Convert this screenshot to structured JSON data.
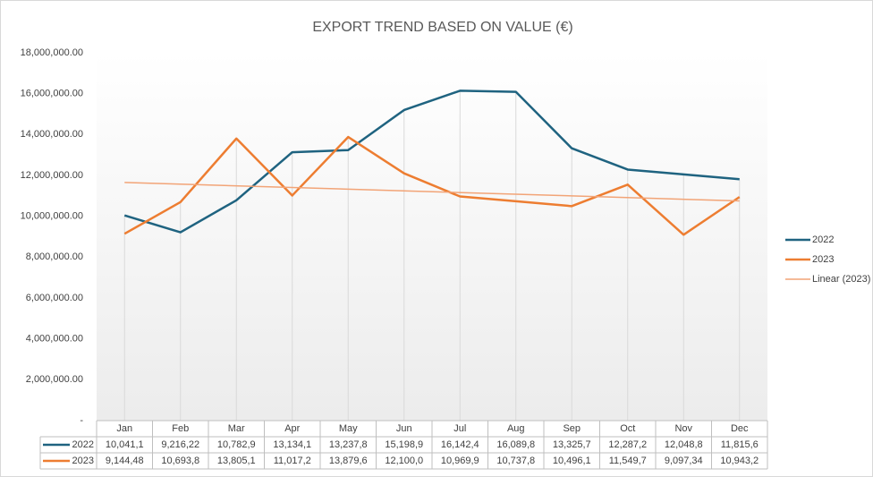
{
  "chart_data": {
    "type": "line",
    "title": "EXPORT TREND BASED ON VALUE (€)",
    "categories": [
      "Jan",
      "Feb",
      "Mar",
      "Apr",
      "May",
      "Jun",
      "Jul",
      "Aug",
      "Sep",
      "Oct",
      "Nov",
      "Dec"
    ],
    "series": [
      {
        "name": "2022",
        "color": "#1f6380",
        "values": [
          10041100,
          9216220,
          10782900,
          13134100,
          13237800,
          15198900,
          16142400,
          16089800,
          13325700,
          12287200,
          12048800,
          11815600
        ],
        "value_labels": [
          "10,041,1",
          "9,216,22",
          "10,782,9",
          "13,134,1",
          "13,237,8",
          "15,198,9",
          "16,142,4",
          "16,089,8",
          "13,325,7",
          "12,287,2",
          "12,048,8",
          "11,815,6"
        ]
      },
      {
        "name": "2023",
        "color": "#ed7d31",
        "values": [
          9144480,
          10693800,
          13805100,
          11017200,
          13879600,
          12100000,
          10969900,
          10737800,
          10496100,
          11549700,
          9097340,
          10943200
        ],
        "value_labels": [
          "9,144,48",
          "10,693,8",
          "13,805,1",
          "11,017,2",
          "13,879,6",
          "12,100,0",
          "10,969,9",
          "10,737,8",
          "10,496,1",
          "11,549,7",
          "9,097,34",
          "10,943,2"
        ],
        "trendline": {
          "type": "linear",
          "name": "Linear (2023)",
          "color": "#f2a477"
        }
      }
    ],
    "ylim": [
      0,
      18000000
    ],
    "yticks": [
      {
        "value": 0,
        "label": "-"
      },
      {
        "value": 2000000,
        "label": "2,000,000.00"
      },
      {
        "value": 4000000,
        "label": "4,000,000.00"
      },
      {
        "value": 6000000,
        "label": "6,000,000.00"
      },
      {
        "value": 8000000,
        "label": "8,000,000.00"
      },
      {
        "value": 10000000,
        "label": "10,000,000.00"
      },
      {
        "value": 12000000,
        "label": "12,000,000.00"
      },
      {
        "value": 14000000,
        "label": "14,000,000.00"
      },
      {
        "value": 16000000,
        "label": "16,000,000.00"
      },
      {
        "value": 18000000,
        "label": "18,000,000.00"
      }
    ],
    "legend": "right",
    "data_table": true
  }
}
